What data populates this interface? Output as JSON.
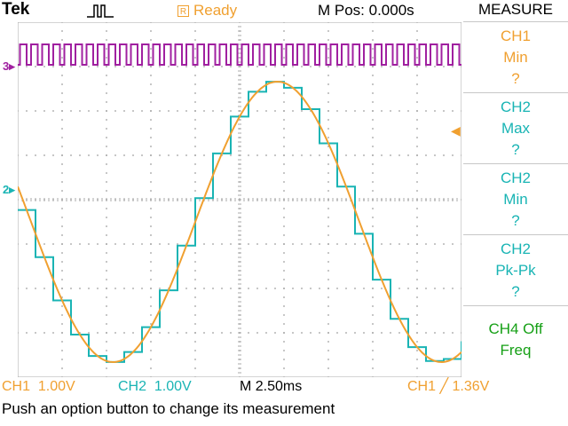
{
  "header": {
    "brand": "Tek",
    "trigger_icon": "pulse-trigger-icon",
    "status_badge": "R",
    "status": "Ready",
    "mpos": "M Pos: 0.000s"
  },
  "menu": {
    "title": "MEASURE",
    "items": [
      {
        "lines": [
          "CH1",
          "Min",
          "?"
        ],
        "color": "#f0a030"
      },
      {
        "lines": [
          "CH2",
          "Max",
          "?"
        ],
        "color": "#19b4b4"
      },
      {
        "lines": [
          "CH2",
          "Min",
          "?"
        ],
        "color": "#19b4b4"
      },
      {
        "lines": [
          "CH2",
          "Pk-Pk",
          "?"
        ],
        "color": "#19b4b4"
      },
      {
        "lines": [
          "CH4 Off",
          "Freq"
        ],
        "color": "#16a016"
      }
    ]
  },
  "markers": {
    "ch3": "3",
    "ch2": "2"
  },
  "footer": {
    "ch1_scale": "CH1  1.00V",
    "ch2_scale": "CH2  1.00V",
    "timebase": "M 2.50ms",
    "trigger": "CH1 ╱ 1.36V",
    "help": "Push an option button to change its measurement"
  },
  "colors": {
    "ch1": "#f0a030",
    "ch2": "#19b4b4",
    "ch3": "#a020a0",
    "ch4": "#16a016",
    "grid": "#b0b0b0"
  }
}
